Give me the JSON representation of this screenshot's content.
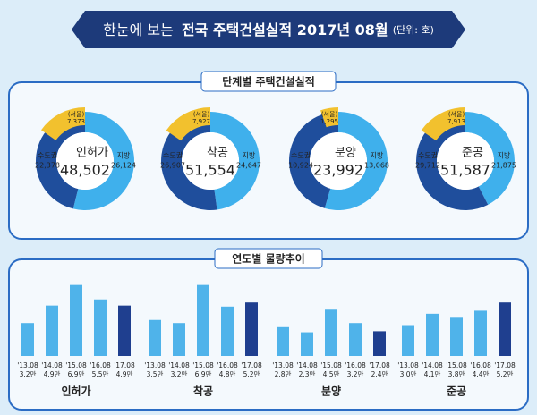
{
  "header": {
    "title_parts": [
      "한눈에 보는",
      "전국 주택건설실적 2017년 08월",
      "(단위: 호)"
    ]
  },
  "donut_section": {
    "title": "단계별 주택건설실적",
    "donuts": [
      {
        "label": "인허가",
        "total": {
          "value": 48502,
          "label": "48,502"
        },
        "segments": [
          {
            "name": "수도권",
            "value": 22378,
            "value_label": "22,378",
            "color": "#1f4e9c"
          },
          {
            "name": "지방",
            "value": 26124,
            "value_label": "26,124",
            "color": "#3fb0ec"
          }
        ],
        "seoul": {
          "name": "(서울)",
          "value": 7373,
          "value_label": "7,373",
          "color": "#f2c12e"
        }
      },
      {
        "label": "착공",
        "total": {
          "value": 51554,
          "label": "51,554"
        },
        "segments": [
          {
            "name": "수도권",
            "value": 26907,
            "value_label": "26,907",
            "color": "#1f4e9c"
          },
          {
            "name": "지방",
            "value": 24647,
            "value_label": "24,647",
            "color": "#3fb0ec"
          }
        ],
        "seoul": {
          "name": "(서울)",
          "value": 7927,
          "value_label": "7,927",
          "color": "#f2c12e"
        }
      },
      {
        "label": "분양",
        "total": {
          "value": 23992,
          "label": "23,992"
        },
        "segments": [
          {
            "name": "수도권",
            "value": 10924,
            "value_label": "10,924",
            "color": "#1f4e9c"
          },
          {
            "name": "지방",
            "value": 13068,
            "value_label": "13,068",
            "color": "#3fb0ec"
          }
        ],
        "seoul": {
          "name": "(서울)",
          "value": 1295,
          "value_label": "1,295",
          "color": "#f2c12e"
        }
      },
      {
        "label": "준공",
        "total": {
          "value": 51587,
          "label": "51,587"
        },
        "segments": [
          {
            "name": "수도권",
            "value": 29712,
            "value_label": "29,712",
            "color": "#1f4e9c"
          },
          {
            "name": "지방",
            "value": 21875,
            "value_label": "21,875",
            "color": "#3fb0ec"
          }
        ],
        "seoul": {
          "name": "(서울)",
          "value": 7913,
          "value_label": "7,913",
          "color": "#f2c12e"
        }
      }
    ]
  },
  "bar_section": {
    "title": "연도별 물량추이",
    "colors": [
      "#4fb3ea",
      "#1f3f8f"
    ],
    "groups": [
      {
        "name": "인허가",
        "categories": [
          "'13.08",
          "'14.08",
          "'15.08",
          "'16.08",
          "'17.08"
        ],
        "values": [
          3.2,
          4.9,
          6.9,
          5.5,
          4.9
        ],
        "value_labels": [
          "3.2만",
          "4.9만",
          "6.9만",
          "5.5만",
          "4.9만"
        ]
      },
      {
        "name": "착공",
        "categories": [
          "'13.08",
          "'14.08",
          "'15.08",
          "'16.08",
          "'17.08"
        ],
        "values": [
          3.5,
          3.2,
          6.9,
          4.8,
          5.2
        ],
        "value_labels": [
          "3.5만",
          "3.2만",
          "6.9만",
          "4.8만",
          "5.2만"
        ]
      },
      {
        "name": "분양",
        "categories": [
          "'13.08",
          "'14.08",
          "'15.08",
          "'16.08",
          "'17.08"
        ],
        "values": [
          2.8,
          2.3,
          4.5,
          3.2,
          2.4
        ],
        "value_labels": [
          "2.8만",
          "2.3만",
          "4.5만",
          "3.2만",
          "2.4만"
        ]
      },
      {
        "name": "준공",
        "categories": [
          "'13.08",
          "'14.08",
          "'15.08",
          "'16.08",
          "'17.08"
        ],
        "values": [
          3.0,
          4.1,
          3.8,
          4.4,
          5.2
        ],
        "value_labels": [
          "3.0만",
          "4.1만",
          "3.8만",
          "4.4만",
          "5.2만"
        ]
      }
    ]
  }
}
